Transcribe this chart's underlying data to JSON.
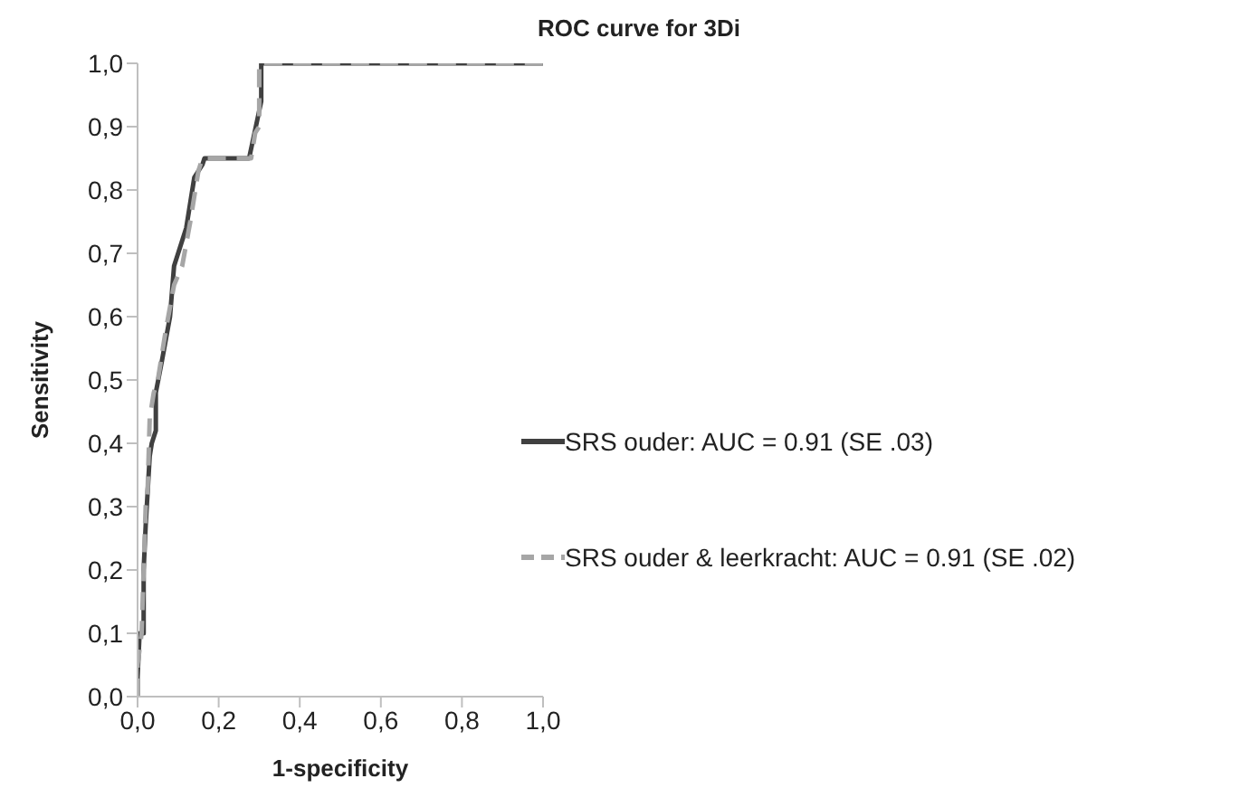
{
  "chart_data": {
    "type": "line",
    "title": "ROC curve for 3Di",
    "xlabel": "1-specificity",
    "ylabel": "Sensitivity",
    "legend": "right",
    "marker": "none",
    "grid": false,
    "xlim": [
      0,
      1
    ],
    "ylim": [
      0,
      1
    ],
    "xticks": [
      {
        "value": 0,
        "label": "0,0"
      },
      {
        "value": 0.2,
        "label": "0,2"
      },
      {
        "value": 0.4,
        "label": "0,4"
      },
      {
        "value": 0.6,
        "label": "0,6"
      },
      {
        "value": 0.8,
        "label": "0,8"
      },
      {
        "value": 1,
        "label": "1,0"
      }
    ],
    "yticks": [
      {
        "value": 0,
        "label": "0,0"
      },
      {
        "value": 0.1,
        "label": "0,1"
      },
      {
        "value": 0.2,
        "label": "0,2"
      },
      {
        "value": 0.3,
        "label": "0,3"
      },
      {
        "value": 0.4,
        "label": "0,4"
      },
      {
        "value": 0.5,
        "label": "0,5"
      },
      {
        "value": 0.6,
        "label": "0,6"
      },
      {
        "value": 0.7,
        "label": "0,7"
      },
      {
        "value": 0.8,
        "label": "0,8"
      },
      {
        "value": 0.9,
        "label": "0,9"
      },
      {
        "value": 1,
        "label": "1,0"
      }
    ],
    "series": [
      {
        "name": "SRS ouder: AUC = 0.91 (SE .03)",
        "color": "#404040",
        "line_style": "solid",
        "x": [
          0,
          0,
          0.005,
          0.015,
          0.015,
          0.02,
          0.03,
          0.035,
          0.045,
          0.045,
          0.06,
          0.08,
          0.09,
          0.1,
          0.12,
          0.13,
          0.14,
          0.16,
          0.165,
          0.275,
          0.305,
          0.305,
          1
        ],
        "values": [
          0,
          0.03,
          0.1,
          0.1,
          0.2,
          0.27,
          0.38,
          0.4,
          0.42,
          0.48,
          0.53,
          0.6,
          0.68,
          0.7,
          0.74,
          0.78,
          0.82,
          0.84,
          0.85,
          0.85,
          0.94,
          1,
          1
        ]
      },
      {
        "name": "SRS ouder & leerkracht: AUC = 0.91 (SE .02)",
        "color": "#a6a6a6",
        "line_style": "dashed",
        "x": [
          0,
          0,
          0.01,
          0.015,
          0.02,
          0.025,
          0.03,
          0.04,
          0.05,
          0.07,
          0.09,
          0.11,
          0.13,
          0.15,
          0.16,
          0.28,
          0.29,
          0.3,
          0.3,
          1
        ],
        "values": [
          0,
          0.05,
          0.1,
          0.2,
          0.3,
          0.33,
          0.44,
          0.48,
          0.5,
          0.58,
          0.65,
          0.68,
          0.75,
          0.83,
          0.85,
          0.85,
          0.89,
          0.9,
          1,
          1
        ]
      }
    ]
  }
}
